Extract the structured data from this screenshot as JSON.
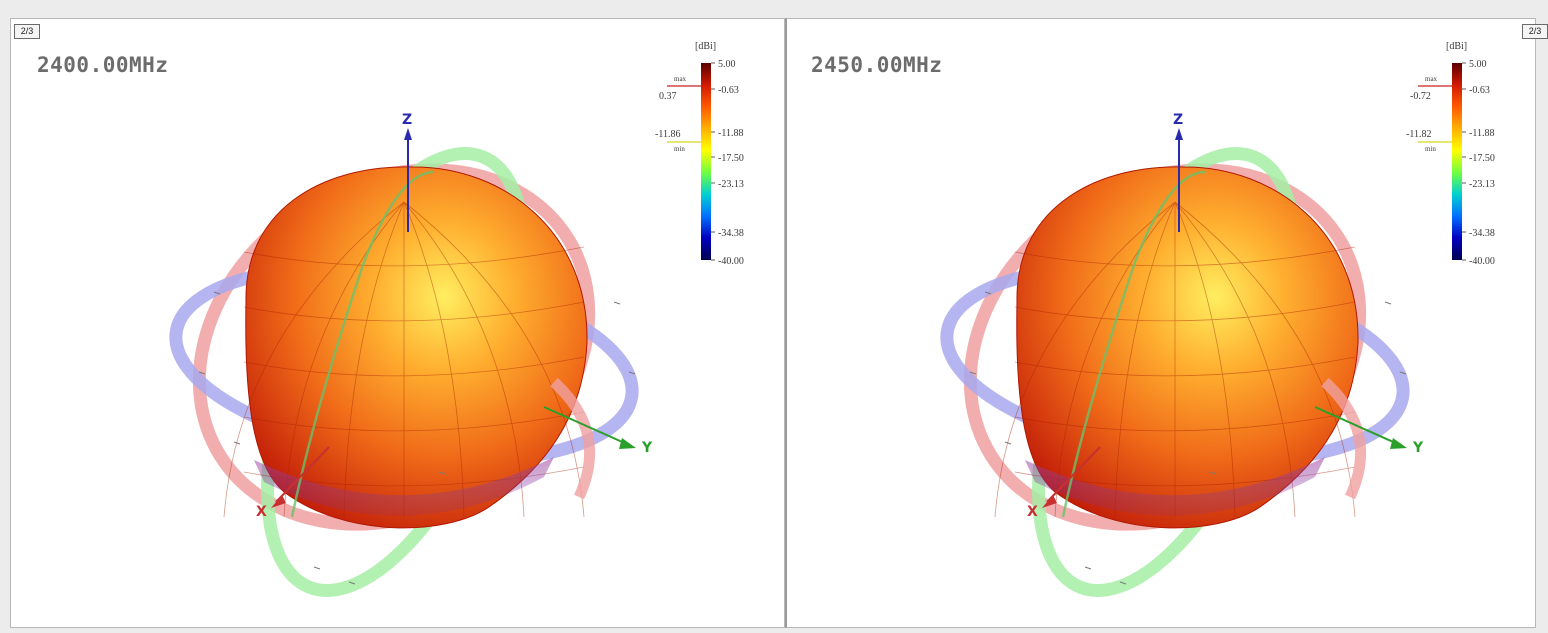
{
  "colors": {
    "ring_theta": "#f0a0a0",
    "ring_phi": "#a8a8ee",
    "ring_green": "#a6eea6",
    "axis_z": "#2a2ab0",
    "axis_y": "#2aa02a",
    "axis_x": "#c83030",
    "pattern_hot": "#ffee60",
    "pattern_mid": "#f06a18",
    "pattern_dark": "#c01a08",
    "max_marker": "#c82020",
    "min_marker": "#d8d820"
  },
  "colorbar": {
    "unit": "[dBi]",
    "ticks": [
      "5.00",
      "-0.63",
      "-11.88",
      "-17.50",
      "-23.13",
      "-34.38",
      "-40.00"
    ],
    "max_label": "max",
    "min_label": "min",
    "stops": [
      "#5a0000",
      "#d01a00",
      "#ff5a00",
      "#ffb000",
      "#ffff00",
      "#70ff40",
      "#00d0d0",
      "#0070ff",
      "#0000c0",
      "#000050"
    ]
  },
  "axes": {
    "z": "Z",
    "y": "Y",
    "x": "X"
  },
  "panels": [
    {
      "id": "left",
      "view_button": "2/3",
      "frequency": "2400.00MHz",
      "max_value": "0.37",
      "min_value": "-11.86"
    },
    {
      "id": "right",
      "view_button": "2/3",
      "frequency": "2450.00MHz",
      "max_value": "-0.72",
      "min_value": "-11.82"
    }
  ]
}
